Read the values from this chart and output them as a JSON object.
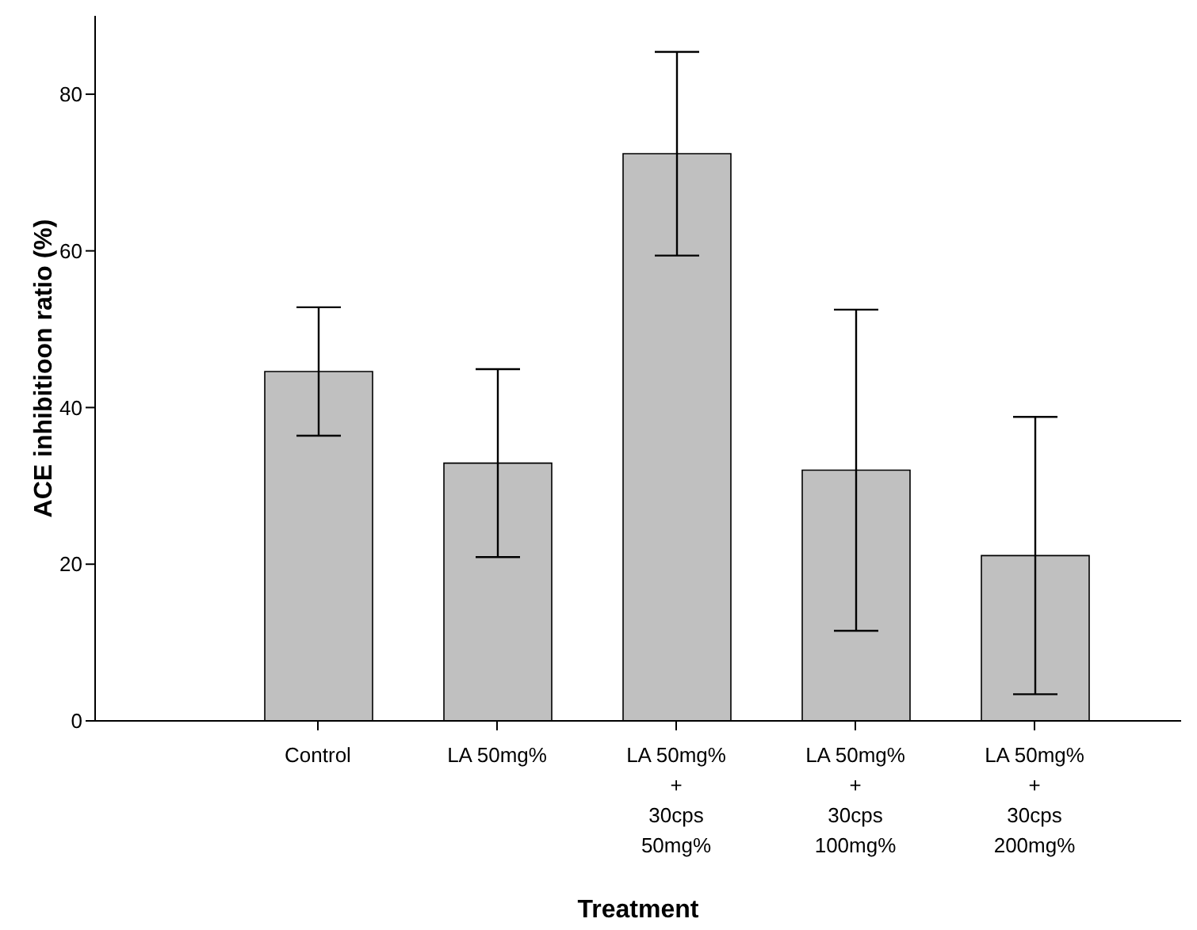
{
  "chart_data": {
    "type": "bar",
    "xlabel": "Treatment",
    "ylabel": "ACE inhibitioon ratio (%)",
    "categories": [
      "Control",
      "LA 50mg%",
      "LA 50mg%\n+\n30cps\n50mg%",
      "LA 50mg%\n+\n30cps\n100mg%",
      "LA 50mg%\n+\n30cps\n200mg%"
    ],
    "values": [
      44.6,
      32.9,
      72.4,
      32.0,
      21.1
    ],
    "errors": [
      8.2,
      12.0,
      13.0,
      20.5,
      17.7
    ],
    "color": "#c0c0c0",
    "ylim": [
      0,
      90
    ],
    "yticks": [
      0,
      20,
      40,
      60,
      80
    ],
    "grid": false,
    "legend": false
  }
}
